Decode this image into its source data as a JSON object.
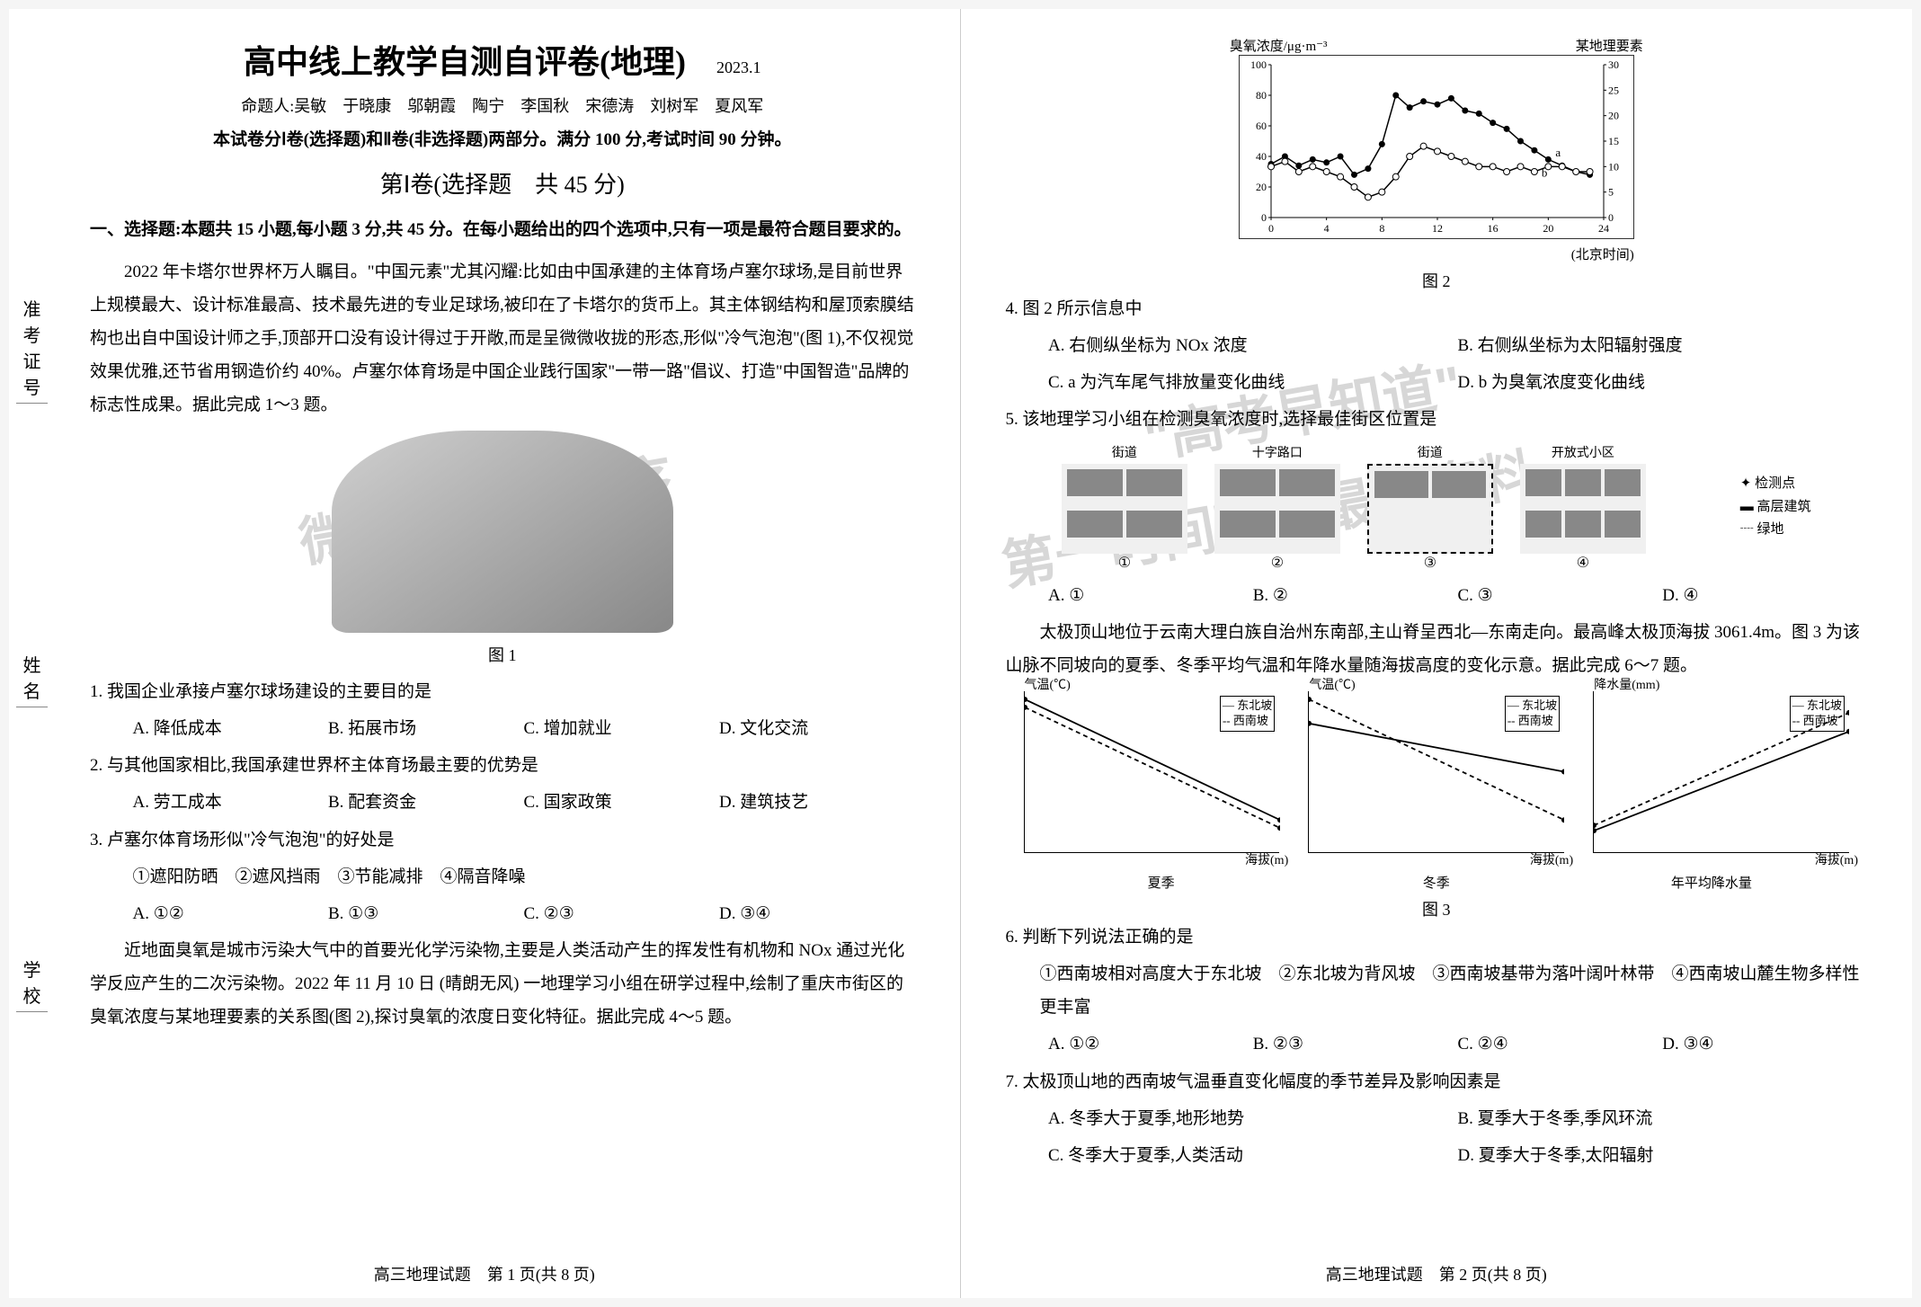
{
  "sidebar": {
    "items": [
      {
        "label": "准考证号"
      },
      {
        "label": "姓名"
      },
      {
        "label": "学校"
      }
    ]
  },
  "header": {
    "title": "高中线上教学自测自评卷(地理)",
    "date": "2023.1",
    "authors_prefix": "命题人:",
    "authors": "吴敏　于晓康　邬朝霞　陶宁　李国秋　宋德涛　刘树军　夏风军",
    "instructions": "本试卷分Ⅰ卷(选择题)和Ⅱ卷(非选择题)两部分。满分 100 分,考试时间 90 分钟。",
    "section1": "第Ⅰ卷(选择题　共 45 分)"
  },
  "q_intro": "一、选择题:本题共 15 小题,每小题 3 分,共 45 分。在每小题给出的四个选项中,只有一项是最符合题目要求的。",
  "passage1": "2022 年卡塔尔世界杯万人瞩目。\"中国元素\"尤其闪耀:比如由中国承建的主体育场卢塞尔球场,是目前世界上规模最大、设计标准最高、技术最先进的专业足球场,被印在了卡塔尔的货币上。其主体钢结构和屋顶索膜结构也出自中国设计师之手,顶部开口没有设计得过于开敞,而是呈微微收拢的形态,形似\"冷气泡泡\"(图 1),不仅视觉效果优雅,还节省用钢造价约 40%。卢塞尔体育场是中国企业践行国家\"一带一路\"倡议、打造\"中国智造\"品牌的标志性成果。据此完成 1～3 题。",
  "fig1_caption": "图 1",
  "q1": {
    "stem": "1. 我国企业承接卢塞尔球场建设的主要目的是",
    "a": "A. 降低成本",
    "b": "B. 拓展市场",
    "c": "C. 增加就业",
    "d": "D. 文化交流"
  },
  "q2": {
    "stem": "2. 与其他国家相比,我国承建世界杯主体育场最主要的优势是",
    "a": "A. 劳工成本",
    "b": "B. 配套资金",
    "c": "C. 国家政策",
    "d": "D. 建筑技艺"
  },
  "q3": {
    "stem": "3. 卢塞尔体育场形似\"冷气泡泡\"的好处是",
    "sub": "①遮阳防晒　②遮风挡雨　③节能减排　④隔音降噪",
    "a": "A. ①②",
    "b": "B. ①③",
    "c": "C. ②③",
    "d": "D. ③④"
  },
  "passage2": "近地面臭氧是城市污染大气中的首要光化学污染物,主要是人类活动产生的挥发性有机物和 NOx 通过光化学反应产生的二次污染物。2022 年 11 月 10 日 (晴朗无风) 一地理学习小组在研学过程中,绘制了重庆市街区的臭氧浓度与某地理要素的关系图(图 2),探讨臭氧的浓度日变化特征。据此完成 4～5 题。",
  "footer_left": "高三地理试题　第 1 页(共 8 页)",
  "chart2": {
    "y_left_label": "臭氧浓度/μg·m⁻³",
    "y_right_label": "某地理要素",
    "x_label": "(北京时间)",
    "caption": "图 2",
    "y_left": {
      "min": 0,
      "max": 100,
      "ticks": [
        0,
        20,
        40,
        60,
        80,
        100
      ]
    },
    "y_right": {
      "min": 0,
      "max": 30,
      "ticks": [
        0,
        5,
        10,
        15,
        20,
        25,
        30
      ]
    },
    "x_ticks": [
      0,
      4,
      8,
      12,
      16,
      20,
      24
    ],
    "series_a": {
      "label": "a",
      "color": "#000",
      "marker": "filled-circle",
      "points": [
        [
          0,
          35
        ],
        [
          1,
          40
        ],
        [
          2,
          34
        ],
        [
          3,
          38
        ],
        [
          4,
          36
        ],
        [
          5,
          40
        ],
        [
          6,
          28
        ],
        [
          7,
          32
        ],
        [
          8,
          48
        ],
        [
          9,
          80
        ],
        [
          10,
          72
        ],
        [
          11,
          76
        ],
        [
          12,
          74
        ],
        [
          13,
          78
        ],
        [
          14,
          70
        ],
        [
          15,
          68
        ],
        [
          16,
          62
        ],
        [
          17,
          58
        ],
        [
          18,
          50
        ],
        [
          19,
          44
        ],
        [
          20,
          38
        ],
        [
          21,
          34
        ],
        [
          22,
          30
        ],
        [
          23,
          28
        ]
      ]
    },
    "series_b": {
      "label": "b",
      "color": "#000",
      "marker": "open-circle",
      "points": [
        [
          0,
          10
        ],
        [
          1,
          11
        ],
        [
          2,
          9
        ],
        [
          3,
          10
        ],
        [
          4,
          9
        ],
        [
          5,
          8
        ],
        [
          6,
          6
        ],
        [
          7,
          4
        ],
        [
          8,
          5
        ],
        [
          9,
          8
        ],
        [
          10,
          12
        ],
        [
          11,
          14
        ],
        [
          12,
          13
        ],
        [
          13,
          12
        ],
        [
          14,
          11
        ],
        [
          15,
          10
        ],
        [
          16,
          10
        ],
        [
          17,
          9
        ],
        [
          18,
          10
        ],
        [
          19,
          9
        ],
        [
          20,
          10
        ],
        [
          21,
          10
        ],
        [
          22,
          9
        ],
        [
          23,
          9
        ]
      ]
    }
  },
  "q4": {
    "stem": "4. 图 2 所示信息中",
    "a": "A. 右侧纵坐标为 NOx 浓度",
    "b": "B. 右侧纵坐标为太阳辐射强度",
    "c": "C. a 为汽车尾气排放量变化曲线",
    "d": "D. b 为臭氧浓度变化曲线"
  },
  "q5": {
    "stem": "5. 该地理学习小组在检测臭氧浓度时,选择最佳街区位置是",
    "a": "A. ①",
    "b": "B. ②",
    "c": "C. ③",
    "d": "D. ④"
  },
  "diagram5": {
    "labels": {
      "street": "街道",
      "cross": "十字路口",
      "open": "开放式小区"
    },
    "legend": {
      "point": "检测点",
      "high": "高层建筑",
      "green": "绿地"
    },
    "opts": [
      "①",
      "②",
      "③",
      "④"
    ]
  },
  "passage3": "太极顶山地位于云南大理白族自治州东南部,主山脊呈西北—东南走向。最高峰太极顶海拔 3061.4m。图 3 为该山脉不同坡向的夏季、冬季平均气温和年降水量随海拔高度的变化示意。据此完成 6～7 题。",
  "chart3": {
    "caption": "图 3",
    "legend": {
      "ne": "东北坡",
      "sw": "西南坡"
    },
    "sub1": {
      "ylabel": "气温(℃)",
      "xlabel": "夏季",
      "xaxis": "海拔(m)",
      "yrange": [
        14,
        24
      ],
      "xticks": [
        1200,
        1500,
        1800,
        2100,
        2400,
        2700
      ],
      "ne": [
        [
          1200,
          23.5
        ],
        [
          2700,
          16
        ]
      ],
      "sw": [
        [
          1200,
          23
        ],
        [
          2700,
          15.5
        ]
      ]
    },
    "sub2": {
      "ylabel": "气温(℃)",
      "xlabel": "冬季",
      "xaxis": "海拔(m)",
      "yrange": [
        3,
        13
      ],
      "xticks": [
        1200,
        1500,
        1800,
        2100,
        2400,
        2700
      ],
      "ne": [
        [
          1200,
          11
        ],
        [
          2700,
          8
        ]
      ],
      "sw": [
        [
          1200,
          12.5
        ],
        [
          2700,
          5
        ]
      ]
    },
    "sub3": {
      "ylabel": "降水量(mm)",
      "xlabel": "年平均降水量",
      "xaxis": "海拔(m)",
      "yrange": [
        600,
        1200
      ],
      "xticks": [
        1200,
        1500,
        1800,
        2100,
        2400,
        2700
      ],
      "ne": [
        [
          1200,
          680
        ],
        [
          2700,
          1050
        ]
      ],
      "sw": [
        [
          1200,
          700
        ],
        [
          2700,
          1120
        ]
      ]
    }
  },
  "q6": {
    "stem": "6. 判断下列说法正确的是",
    "sub": "①西南坡相对高度大于东北坡　②东北坡为背风坡　③西南坡基带为落叶阔叶林带　④西南坡山麓生物多样性更丰富",
    "a": "A. ①②",
    "b": "B. ②③",
    "c": "C. ②④",
    "d": "D. ③④"
  },
  "q7": {
    "stem": "7. 太极顶山地的西南坡气温垂直变化幅度的季节差异及影响因素是",
    "a": "A. 冬季大于夏季,地形地势",
    "b": "B. 夏季大于冬季,季风环流",
    "c": "C. 冬季大于夏季,人类活动",
    "d": "D. 夏季大于冬季,太阳辐射"
  },
  "footer_right": "高三地理试题　第 2 页(共 8 页)",
  "watermark": {
    "line1": "微信搜索小程序",
    "line2": "\"高考早知道\"",
    "line3": "第一时间获取最新资料"
  }
}
